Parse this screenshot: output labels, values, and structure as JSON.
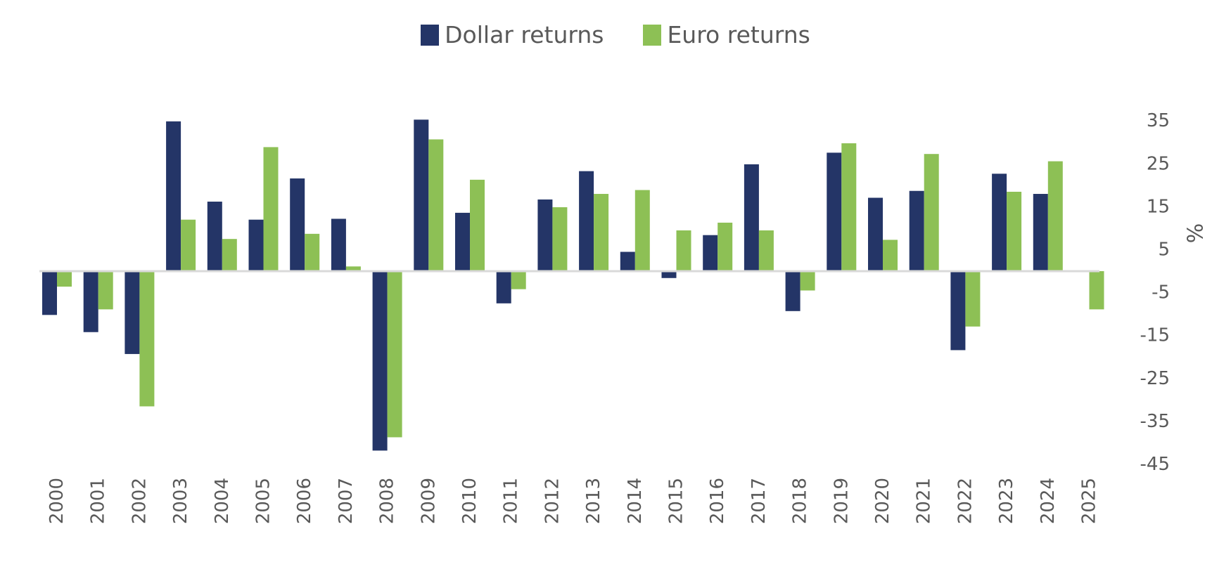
{
  "chart_data": {
    "type": "bar",
    "categories": [
      "2000",
      "2001",
      "2002",
      "2003",
      "2004",
      "2005",
      "2006",
      "2007",
      "2008",
      "2009",
      "2010",
      "2011",
      "2012",
      "2013",
      "2014",
      "2015",
      "2016",
      "2017",
      "2018",
      "2019",
      "2020",
      "2021",
      "2022",
      "2023",
      "2024",
      "2025"
    ],
    "series": [
      {
        "name": "Dollar returns",
        "color": "#243567",
        "values": [
          -10.2,
          -14.2,
          -19.3,
          34.9,
          16.2,
          12.0,
          21.6,
          12.2,
          -41.8,
          35.3,
          13.6,
          -7.5,
          16.7,
          23.3,
          4.5,
          -1.6,
          8.4,
          24.9,
          -9.3,
          27.6,
          17.1,
          18.7,
          -18.4,
          22.7,
          18.0,
          -0.2
        ]
      },
      {
        "name": "Euro returns",
        "color": "#8DC055",
        "values": [
          -3.6,
          -8.9,
          -31.5,
          12.0,
          7.5,
          28.9,
          8.7,
          1.1,
          -38.7,
          30.7,
          21.3,
          -4.2,
          14.9,
          18.0,
          18.9,
          9.5,
          11.3,
          9.5,
          -4.5,
          29.8,
          7.3,
          27.3,
          -12.9,
          18.5,
          25.6,
          -8.9
        ]
      }
    ],
    "ylabel": "%",
    "yticks": [
      "35",
      "25",
      "15",
      "5",
      "-5",
      "-15",
      "-25",
      "-35",
      "-45"
    ],
    "ylim": [
      -45,
      35
    ],
    "y_axis_position": "right",
    "legend": "top-center",
    "grid": false
  }
}
